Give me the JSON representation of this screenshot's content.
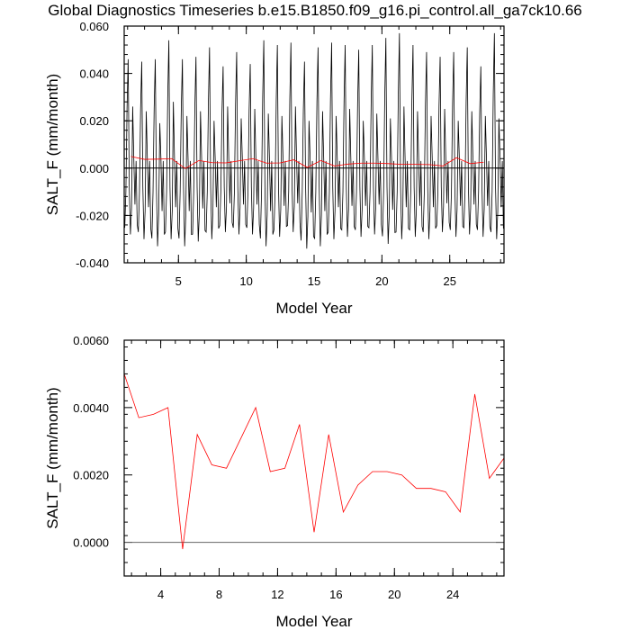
{
  "figure": {
    "title": "Global Diagnostics Timeseries b.e15.B1850.f09_g16.pi_control.all_ga7ck10.66"
  },
  "chart_data": [
    {
      "type": "line",
      "xlabel": "Model Year",
      "ylabel": "SALT_F (mm/month)",
      "xlim": [
        1,
        29
      ],
      "ylim": [
        -0.04,
        0.06
      ],
      "xticks": [
        5,
        10,
        15,
        20,
        25
      ],
      "xtick_labels": [
        "5",
        "10",
        "15",
        "20",
        "25"
      ],
      "yticks": [
        -0.04,
        -0.02,
        0,
        0.02,
        0.04,
        0.06
      ],
      "ytick_labels": [
        "-0.040",
        "-0.020",
        "0.000",
        "0.020",
        "0.040",
        "0.060"
      ],
      "zero_line": true,
      "series": [
        {
          "color": "#000000",
          "description_kind": "monthly",
          "monthly_peaks": [
            0.046,
            0.045,
            0.046,
            0.054,
            0.046,
            0.047,
            0.051,
            0.043,
            0.049,
            0.044,
            0.054,
            0.052,
            0.053,
            0.045,
            0.051,
            0.053,
            0.052,
            0.05,
            0.052,
            0.055,
            0.057,
            0.052,
            0.049,
            0.047,
            0.049,
            0.051,
            0.043,
            0.057
          ],
          "monthly_troughs": [
            -0.028,
            -0.03,
            -0.033,
            -0.03,
            -0.033,
            -0.031,
            -0.03,
            -0.027,
            -0.028,
            -0.028,
            -0.033,
            -0.029,
            -0.027,
            -0.034,
            -0.033,
            -0.03,
            -0.029,
            -0.029,
            -0.028,
            -0.032,
            -0.03,
            -0.029,
            -0.03,
            -0.027,
            -0.029,
            -0.028,
            -0.029,
            -0.03
          ],
          "monthly_secondary": [
            0.026,
            0.024,
            0.019,
            0.028,
            0.022,
            0.024,
            0.02,
            0.026,
            0.021,
            0.025,
            0.023,
            0.022,
            0.026,
            0.02,
            0.024,
            0.022,
            0.025,
            0.02,
            0.023,
            0.021,
            0.026,
            0.024,
            0.022,
            0.025,
            0.02,
            0.024,
            0.022,
            0.021
          ]
        },
        {
          "color": "#ff0000",
          "x": [
            1.5,
            2.5,
            3.5,
            4.5,
            5.5,
            6.5,
            7.5,
            8.5,
            9.5,
            10.5,
            11.5,
            12.5,
            13.5,
            14.5,
            15.5,
            16.5,
            17.5,
            18.5,
            19.5,
            20.5,
            21.5,
            22.5,
            23.5,
            24.5,
            25.5,
            26.5,
            27.5
          ],
          "y": [
            0.0049,
            0.0037,
            0.0038,
            0.004,
            -0.0002,
            0.0032,
            0.0023,
            0.0022,
            0.0031,
            0.004,
            0.0021,
            0.0022,
            0.0035,
            0.0003,
            0.0032,
            0.0009,
            0.0017,
            0.0021,
            0.0021,
            0.0019,
            0.0016,
            0.0016,
            0.0015,
            0.0009,
            0.0044,
            0.0019,
            0.0025
          ]
        }
      ]
    },
    {
      "type": "line",
      "xlabel": "Model Year",
      "ylabel": "SALT_F (mm/month)",
      "xlim": [
        1.5,
        27.5
      ],
      "ylim": [
        -0.001,
        0.006
      ],
      "xticks": [
        4,
        8,
        12,
        16,
        20,
        24
      ],
      "xtick_labels": [
        "4",
        "8",
        "12",
        "16",
        "20",
        "24"
      ],
      "yticks": [
        0,
        0.002,
        0.004,
        0.006
      ],
      "ytick_labels": [
        "0.0000",
        "0.0020",
        "0.0040",
        "0.0060"
      ],
      "zero_line": true,
      "series": [
        {
          "color": "#ff0000",
          "x": [
            1.5,
            2.5,
            3.5,
            4.5,
            5.5,
            6.5,
            7.5,
            8.5,
            9.5,
            10.5,
            11.5,
            12.5,
            13.5,
            14.5,
            15.5,
            16.5,
            17.5,
            18.5,
            19.5,
            20.5,
            21.5,
            22.5,
            23.5,
            24.5,
            25.5,
            26.5,
            27.5
          ],
          "y": [
            0.005,
            0.0037,
            0.0038,
            0.004,
            -0.0002,
            0.0032,
            0.0023,
            0.0022,
            0.0031,
            0.004,
            0.0021,
            0.0022,
            0.0035,
            0.0003,
            0.0032,
            0.0009,
            0.0017,
            0.0021,
            0.0021,
            0.002,
            0.0016,
            0.0016,
            0.0015,
            0.0009,
            0.0044,
            0.0019,
            0.0025
          ]
        }
      ]
    }
  ]
}
